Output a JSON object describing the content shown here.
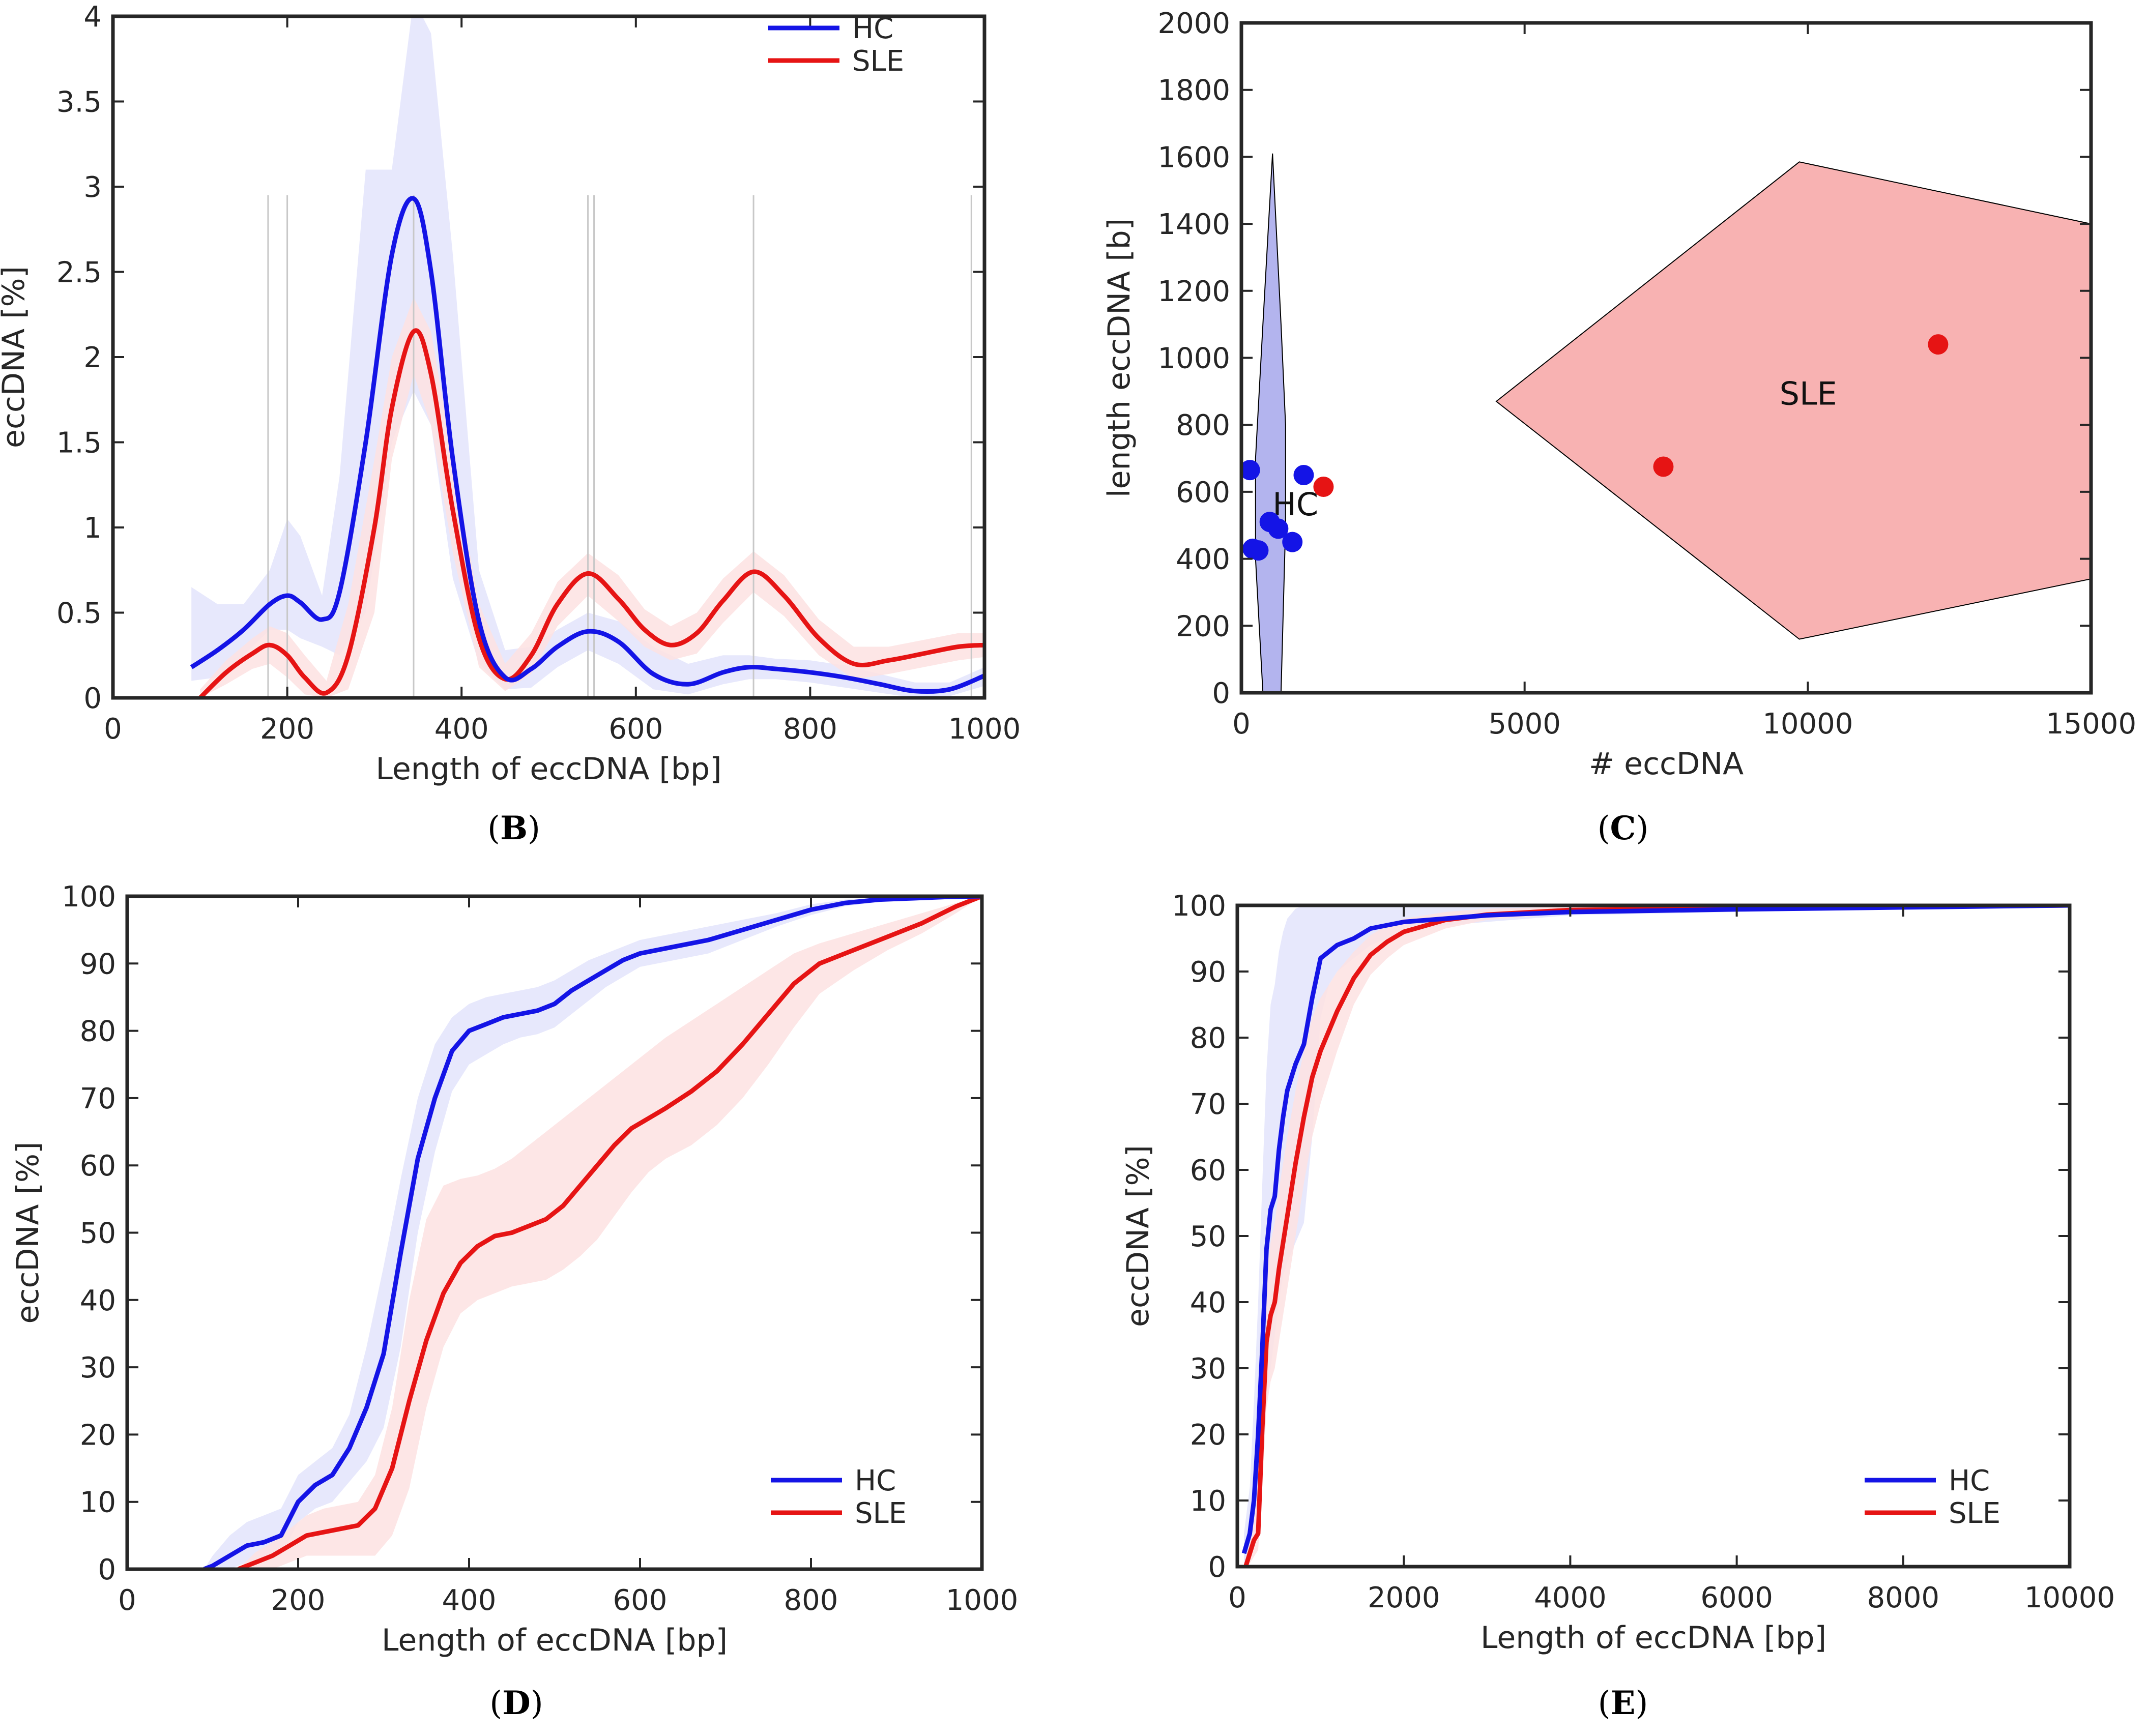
{
  "colors": {
    "hc": "#1414e6",
    "sle": "#e61414",
    "hc_band": "#e3e4fb",
    "sle_band": "#fde2e2",
    "hc_region": "#b3b4ee",
    "sle_region": "#f8b2b2",
    "axis": "#262626",
    "refline": "#c8c8c8"
  },
  "chart_data": [
    {
      "id": "B",
      "type": "line",
      "panel_label": "B",
      "xlabel": "Length of eccDNA [bp]",
      "ylabel": "eccDNA [%]",
      "xlim": [
        0,
        1000
      ],
      "ylim": [
        0,
        4
      ],
      "xticks": [
        0,
        200,
        400,
        600,
        800,
        1000
      ],
      "xtick_labels": [
        "0",
        "200",
        "400",
        "600",
        "800",
        "1000"
      ],
      "yticks": [
        0,
        0.5,
        1,
        1.5,
        2,
        2.5,
        3,
        3.5,
        4
      ],
      "ytick_labels": [
        "0",
        "0.5",
        "1",
        "1.5",
        "2",
        "2.5",
        "3",
        "3.5",
        "4"
      ],
      "legend": {
        "position": "top-right",
        "entries": [
          "HC",
          "SLE"
        ]
      },
      "reference_lines_x": [
        178,
        200,
        345,
        545,
        552,
        735,
        985
      ],
      "series": [
        {
          "name": "HC",
          "x": [
            90,
            120,
            150,
            180,
            200,
            215,
            240,
            260,
            290,
            320,
            345,
            365,
            390,
            420,
            450,
            480,
            510,
            545,
            580,
            620,
            660,
            700,
            730,
            760,
            800,
            840,
            880,
            920,
            960,
            1000
          ],
          "y": [
            0.18,
            0.28,
            0.4,
            0.55,
            0.6,
            0.56,
            0.46,
            0.62,
            1.5,
            2.6,
            2.93,
            2.5,
            1.4,
            0.45,
            0.12,
            0.17,
            0.3,
            0.39,
            0.33,
            0.14,
            0.08,
            0.15,
            0.18,
            0.17,
            0.15,
            0.12,
            0.08,
            0.04,
            0.05,
            0.13
          ],
          "band_upper": [
            0.65,
            0.55,
            0.55,
            0.75,
            1.05,
            0.95,
            0.6,
            1.3,
            3.1,
            3.1,
            4.1,
            3.9,
            2.6,
            0.75,
            0.28,
            0.3,
            0.4,
            0.5,
            0.45,
            0.3,
            0.2,
            0.25,
            0.25,
            0.23,
            0.22,
            0.19,
            0.14,
            0.09,
            0.09,
            0.18
          ],
          "band_lower": [
            0.1,
            0.12,
            0.25,
            0.4,
            0.4,
            0.35,
            0.3,
            0.25,
            0.5,
            1.5,
            1.8,
            1.6,
            0.7,
            0.2,
            0.05,
            0.06,
            0.18,
            0.28,
            0.2,
            0.05,
            0.02,
            0.08,
            0.11,
            0.11,
            0.09,
            0.06,
            0.03,
            0.0,
            0.01,
            0.07
          ]
        },
        {
          "name": "SLE",
          "x": [
            100,
            130,
            160,
            180,
            200,
            220,
            245,
            270,
            300,
            320,
            345,
            365,
            390,
            420,
            450,
            480,
            510,
            545,
            580,
            610,
            640,
            670,
            700,
            735,
            770,
            810,
            850,
            890,
            930,
            970,
            1000
          ],
          "y": [
            0.0,
            0.15,
            0.26,
            0.31,
            0.25,
            0.12,
            0.03,
            0.25,
            1.0,
            1.7,
            2.15,
            1.9,
            1.1,
            0.35,
            0.11,
            0.25,
            0.55,
            0.73,
            0.58,
            0.4,
            0.31,
            0.38,
            0.57,
            0.74,
            0.6,
            0.35,
            0.2,
            0.22,
            0.26,
            0.3,
            0.31
          ],
          "band_upper": [
            0.05,
            0.22,
            0.35,
            0.42,
            0.38,
            0.25,
            0.1,
            0.55,
            1.4,
            2.0,
            2.35,
            2.15,
            1.4,
            0.55,
            0.2,
            0.38,
            0.68,
            0.85,
            0.72,
            0.52,
            0.42,
            0.5,
            0.7,
            0.86,
            0.72,
            0.46,
            0.3,
            0.3,
            0.34,
            0.38,
            0.38
          ],
          "band_lower": [
            0.0,
            0.08,
            0.17,
            0.2,
            0.12,
            0.02,
            0.0,
            0.05,
            0.5,
            1.4,
            1.9,
            1.6,
            0.85,
            0.18,
            0.04,
            0.14,
            0.42,
            0.6,
            0.45,
            0.3,
            0.22,
            0.26,
            0.44,
            0.62,
            0.48,
            0.25,
            0.11,
            0.14,
            0.18,
            0.22,
            0.24
          ]
        }
      ]
    },
    {
      "id": "C",
      "type": "scatter",
      "panel_label": "C",
      "xlabel": "# eccDNA",
      "ylabel": "length eccDNA [b]",
      "xlim": [
        0,
        15000
      ],
      "ylim": [
        0,
        2000
      ],
      "xticks": [
        0,
        5000,
        10000,
        15000
      ],
      "xtick_labels": [
        "0",
        "5000",
        "10000",
        "15000"
      ],
      "yticks": [
        0,
        200,
        400,
        600,
        800,
        1000,
        1200,
        1400,
        1600,
        1800,
        2000
      ],
      "ytick_labels": [
        "0",
        "200",
        "400",
        "600",
        "800",
        "1000",
        "1200",
        "1400",
        "1600",
        "1800",
        "2000"
      ],
      "regions": [
        {
          "name": "HC",
          "label": "HC",
          "label_at": [
            550,
            530
          ],
          "polygon_x": [
            550,
            380,
            250,
            250,
            380,
            550,
            700,
            780,
            780,
            700
          ],
          "polygon_y": [
            1610,
            1100,
            700,
            400,
            0,
            -120,
            0,
            500,
            800,
            1100
          ]
        },
        {
          "name": "SLE",
          "label": "SLE",
          "label_at": [
            9500,
            860
          ],
          "polygon_x": [
            4500,
            9850,
            15000,
            15000,
            9850
          ],
          "polygon_y": [
            870,
            1585,
            1400,
            340,
            160
          ]
        }
      ],
      "series": [
        {
          "name": "HC",
          "x": [
            150,
            200,
            300,
            500,
            650,
            900,
            1100
          ],
          "y": [
            665,
            430,
            425,
            510,
            490,
            450,
            650
          ]
        },
        {
          "name": "SLE",
          "x": [
            1450,
            7450,
            12300
          ],
          "y": [
            615,
            675,
            1040
          ]
        }
      ]
    },
    {
      "id": "D",
      "type": "line",
      "panel_label": "D",
      "xlabel": "Length of eccDNA [bp]",
      "ylabel": "eccDNA [%]",
      "xlim": [
        0,
        1000
      ],
      "ylim": [
        0,
        100
      ],
      "xticks": [
        0,
        200,
        400,
        600,
        800,
        1000
      ],
      "xtick_labels": [
        "0",
        "200",
        "400",
        "600",
        "800",
        "1000"
      ],
      "yticks": [
        0,
        10,
        20,
        30,
        40,
        50,
        60,
        70,
        80,
        90,
        100
      ],
      "ytick_labels": [
        "0",
        "10",
        "20",
        "30",
        "40",
        "50",
        "60",
        "70",
        "80",
        "90",
        "100"
      ],
      "legend": {
        "position": "bottom-right",
        "entries": [
          "HC",
          "SLE"
        ]
      },
      "series": [
        {
          "name": "HC",
          "x": [
            90,
            100,
            120,
            140,
            160,
            180,
            200,
            220,
            240,
            260,
            280,
            300,
            320,
            340,
            360,
            380,
            400,
            420,
            440,
            460,
            480,
            500,
            520,
            540,
            560,
            580,
            600,
            640,
            680,
            720,
            760,
            800,
            840,
            880,
            920,
            960,
            1000
          ],
          "y": [
            0,
            0.5,
            2,
            3.5,
            4,
            5,
            10,
            12.5,
            14,
            18,
            24,
            32,
            47,
            61,
            70,
            77,
            80,
            81,
            82,
            82.5,
            83,
            84,
            86,
            87.5,
            89,
            90.5,
            91.5,
            92.5,
            93.5,
            95,
            96.5,
            98,
            99,
            99.5,
            99.7,
            99.9,
            100
          ],
          "band_upper": [
            0,
            2,
            5,
            7,
            8,
            9,
            14,
            16,
            18,
            23,
            33,
            45,
            58,
            70,
            78,
            82,
            84,
            85,
            85.5,
            86,
            86.5,
            87.5,
            89,
            90.5,
            91.5,
            92.5,
            93.5,
            94.5,
            95.5,
            96.5,
            97.5,
            98.8,
            99.5,
            99.8,
            99.9,
            100,
            100
          ],
          "band_lower": [
            0,
            0,
            0,
            1,
            1.5,
            2,
            7,
            9,
            10,
            13,
            16,
            21,
            33,
            50,
            62,
            71,
            75,
            76.5,
            78,
            79,
            79.5,
            80.5,
            82.5,
            84.5,
            86.5,
            88,
            89.5,
            90.5,
            91.5,
            93.5,
            95.5,
            97.2,
            98.5,
            99.2,
            99.5,
            99.8,
            100
          ]
        },
        {
          "name": "SLE",
          "x": [
            130,
            150,
            170,
            190,
            210,
            230,
            250,
            270,
            290,
            310,
            330,
            350,
            370,
            390,
            410,
            430,
            450,
            470,
            490,
            510,
            530,
            550,
            570,
            590,
            610,
            630,
            660,
            690,
            720,
            750,
            780,
            810,
            850,
            890,
            930,
            970,
            1000
          ],
          "y": [
            0,
            1,
            2,
            3.5,
            5,
            5.5,
            6,
            6.5,
            9,
            15,
            25,
            34,
            41,
            45.5,
            48,
            49.5,
            50,
            51,
            52,
            54,
            57,
            60,
            63,
            65.5,
            67,
            68.5,
            71,
            74,
            78,
            82.5,
            87,
            90,
            92,
            94,
            96,
            98.5,
            100
          ],
          "band_upper": [
            0,
            2.5,
            4,
            6,
            8,
            9,
            9.5,
            10,
            14,
            24,
            40,
            52,
            57,
            58,
            58.5,
            59.5,
            61,
            63,
            65,
            67,
            69,
            71,
            73,
            75,
            77,
            79,
            81.5,
            84,
            86.5,
            89,
            91.5,
            93,
            94.5,
            96,
            97.5,
            99,
            100
          ],
          "band_lower": [
            0,
            0,
            0,
            1,
            2,
            2,
            2,
            2,
            2,
            5,
            12,
            24,
            33,
            38,
            40,
            41,
            42,
            42.5,
            43,
            44.5,
            46.5,
            49,
            52.5,
            56,
            59,
            61,
            63,
            66,
            70,
            75,
            80.5,
            85.5,
            89,
            92,
            94.5,
            97.5,
            100
          ]
        }
      ]
    },
    {
      "id": "E",
      "type": "line",
      "panel_label": "E",
      "xlabel": "Length of eccDNA [bp]",
      "ylabel": "eccDNA [%]",
      "xlim": [
        0,
        10000
      ],
      "ylim": [
        0,
        100
      ],
      "xticks": [
        0,
        2000,
        4000,
        6000,
        8000,
        10000
      ],
      "xtick_labels": [
        "0",
        "2000",
        "4000",
        "6000",
        "8000",
        "10000"
      ],
      "yticks": [
        0,
        10,
        20,
        30,
        40,
        50,
        60,
        70,
        80,
        90,
        100
      ],
      "ytick_labels": [
        "0",
        "10",
        "20",
        "30",
        "40",
        "50",
        "60",
        "70",
        "80",
        "90",
        "100"
      ],
      "legend": {
        "position": "bottom-right",
        "entries": [
          "HC",
          "SLE"
        ]
      },
      "series": [
        {
          "name": "HC",
          "x": [
            80,
            150,
            200,
            250,
            300,
            350,
            400,
            450,
            500,
            550,
            600,
            700,
            800,
            900,
            1000,
            1100,
            1200,
            1400,
            1600,
            2000,
            2500,
            3000,
            4000,
            6000,
            8000,
            10000
          ],
          "y": [
            2,
            5,
            10,
            20,
            33,
            48,
            54,
            56,
            63,
            68,
            72,
            76,
            79,
            86,
            92,
            93,
            94,
            95,
            96.5,
            97.5,
            98,
            98.5,
            99,
            99.4,
            99.7,
            100
          ],
          "band_upper": [
            5,
            12,
            25,
            40,
            58,
            75,
            85,
            88,
            93,
            96,
            98,
            99.5,
            100,
            100,
            100,
            100,
            100,
            100,
            100,
            100,
            100,
            100,
            100,
            100,
            100,
            100
          ],
          "band_lower": [
            0,
            1,
            3,
            8,
            15,
            25,
            30,
            35,
            40,
            44,
            46,
            49,
            52,
            65,
            83,
            88,
            90,
            92,
            94,
            96,
            97,
            97.5,
            98.5,
            99,
            99.5,
            100
          ]
        },
        {
          "name": "SLE",
          "x": [
            100,
            150,
            200,
            250,
            300,
            350,
            400,
            450,
            500,
            600,
            700,
            800,
            900,
            1000,
            1200,
            1400,
            1600,
            1800,
            2000,
            2500,
            3000,
            4000,
            6000,
            8000,
            10000
          ],
          "y": [
            0,
            2,
            4,
            5,
            21,
            34,
            38,
            40,
            45,
            53,
            61,
            68,
            74,
            78,
            84,
            89,
            92.5,
            94.5,
            96,
            97.8,
            98.6,
            99.3,
            99.6,
            99.8,
            100
          ],
          "band_upper": [
            1,
            4,
            7,
            12,
            30,
            44,
            49,
            52,
            57,
            65,
            72,
            78,
            83,
            86,
            90,
            93,
            95.5,
            97,
            98,
            99,
            99.5,
            99.8,
            99.9,
            100,
            100
          ],
          "band_lower": [
            0,
            0.5,
            1.5,
            2.5,
            12,
            24,
            28,
            30,
            34,
            42,
            50,
            58,
            65,
            70,
            78,
            85,
            89.5,
            92,
            94,
            96.5,
            97.8,
            98.8,
            99.3,
            99.6,
            100
          ]
        }
      ]
    }
  ]
}
